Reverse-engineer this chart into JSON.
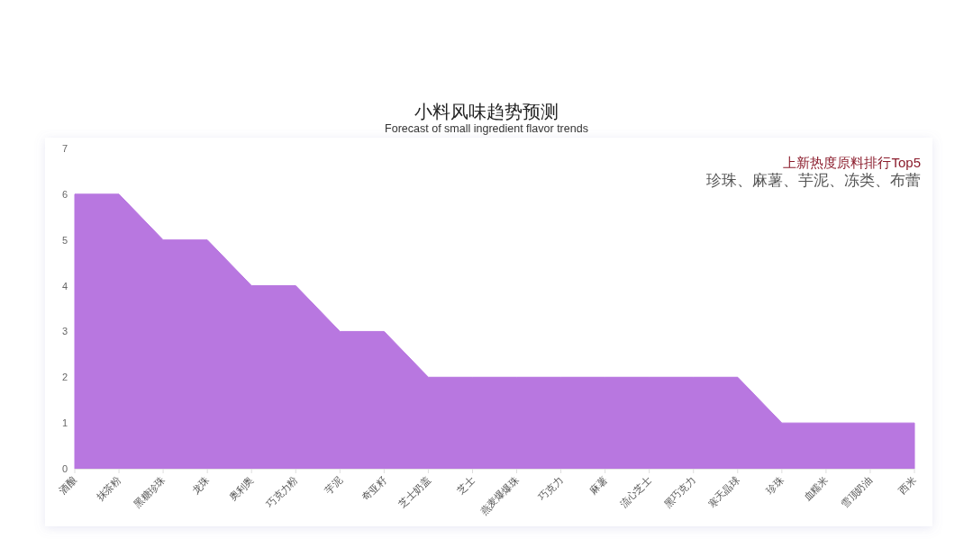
{
  "chart_data": {
    "type": "area",
    "title": "小料风味趋势预测",
    "subtitle": "Forecast of small ingredient flavor trends",
    "categories": [
      "酒酿",
      "抹茶粉",
      "黑糖珍珠",
      "龙珠",
      "奥利奥",
      "巧克力粉",
      "芋泥",
      "奇亚籽",
      "芝士奶盖",
      "芝士",
      "燕麦爆爆珠",
      "巧克力",
      "麻薯",
      "流心芝士",
      "黑巧克力",
      "寒天晶球",
      "珍珠",
      "血糯米",
      "雪顶奶油",
      "西米"
    ],
    "values": [
      6,
      6,
      5,
      5,
      4,
      4,
      3,
      3,
      2,
      2,
      2,
      2,
      2,
      2,
      2,
      2,
      1,
      1,
      1,
      1
    ],
    "color": "#b877e0",
    "ylim": [
      0,
      7
    ],
    "yticks": [
      0,
      1,
      2,
      3,
      4,
      5,
      6,
      7
    ],
    "annotations": [
      "上新热度原料排行Top5",
      "珍珠、麻薯、芋泥、冻类、布蕾"
    ]
  }
}
